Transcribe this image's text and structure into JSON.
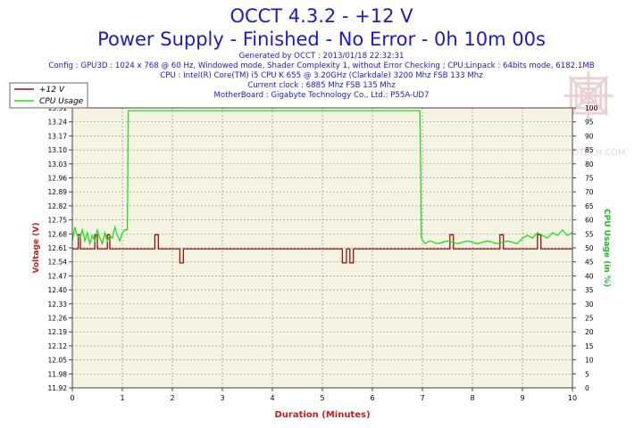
{
  "header": {
    "title": "OCCT 4.3.2 - +12 V",
    "subtitle": "Power Supply - Finished - No Error - 0h 10m 00s",
    "info_lines": [
      "Generated by OCCT : 2013/01/18 22:32:31",
      "Config : GPU3D : 1024 x 768 @ 60 Hz, Windowed mode, Shader Complexity 1, without Error Checking ; CPU:Linpack : 64bits mode, 6182.1MB",
      "CPU : Intel(R) Core(TM) i5 CPU K 655 @ 3.20GHz (Clarkdale) 3200 Mhz FSB 133 Mhz",
      "Current clock : 6885 Mhz FSB 135 Mhz",
      "MotherBoard : Gigabyte Technology Co., Ltd.: P55A-UD7"
    ]
  },
  "watermark_text": "VMODTECH.COM",
  "colors": {
    "title": "#1a1ac8",
    "voltage": "#a01010",
    "cpu": "#22dd22",
    "axis_label": "#c02020",
    "right_axis_label": "#22b822",
    "plot_bg": "#f5f3e2",
    "grid": "#9a9a9a"
  },
  "chart_data": {
    "type": "line",
    "xlabel": "Duration (Minutes)",
    "ylabel_left": "Voltage (V)",
    "ylabel_right": "CPU Usage (in %)",
    "xlim": [
      0,
      10
    ],
    "ylim_left": [
      11.92,
      13.31
    ],
    "ylim_right": [
      0,
      101
    ],
    "x_ticks": [
      "0",
      "1",
      "2",
      "3",
      "4",
      "5",
      "6",
      "7",
      "8",
      "9",
      "10"
    ],
    "y_left_ticks": [
      "13.31",
      "13.24",
      "13.17",
      "13.10",
      "13.03",
      "12.96",
      "12.89",
      "12.82",
      "12.75",
      "12.68",
      "12.61",
      "12.54",
      "12.47",
      "12.40",
      "12.33",
      "12.26",
      "12.19",
      "12.12",
      "12.05",
      "11.98",
      "11.92"
    ],
    "y_right_ticks": [
      "100",
      "95",
      "90",
      "85",
      "80",
      "75",
      "70",
      "65",
      "60",
      "55",
      "50",
      "45",
      "40",
      "35",
      "30",
      "25",
      "20",
      "15",
      "10",
      "5",
      "0"
    ],
    "legend": {
      "position": "top-left",
      "entries": [
        "+12 V",
        "CPU Usage"
      ]
    },
    "grid": true,
    "series": [
      {
        "name": "+12 V",
        "axis": "left",
        "points": [
          [
            0,
            12.61
          ],
          [
            0.12,
            12.61
          ],
          [
            0.12,
            12.68
          ],
          [
            0.16,
            12.68
          ],
          [
            0.16,
            12.61
          ],
          [
            0.45,
            12.61
          ],
          [
            0.45,
            12.68
          ],
          [
            0.5,
            12.68
          ],
          [
            0.5,
            12.61
          ],
          [
            0.7,
            12.61
          ],
          [
            0.7,
            12.68
          ],
          [
            0.75,
            12.68
          ],
          [
            0.75,
            12.61
          ],
          [
            1.65,
            12.61
          ],
          [
            1.65,
            12.68
          ],
          [
            1.72,
            12.68
          ],
          [
            1.72,
            12.61
          ],
          [
            2.15,
            12.61
          ],
          [
            2.15,
            12.54
          ],
          [
            2.22,
            12.54
          ],
          [
            2.22,
            12.61
          ],
          [
            5.4,
            12.61
          ],
          [
            5.4,
            12.54
          ],
          [
            5.48,
            12.54
          ],
          [
            5.48,
            12.61
          ],
          [
            5.55,
            12.61
          ],
          [
            5.55,
            12.54
          ],
          [
            5.62,
            12.54
          ],
          [
            5.62,
            12.61
          ],
          [
            7.55,
            12.61
          ],
          [
            7.55,
            12.68
          ],
          [
            7.62,
            12.68
          ],
          [
            7.62,
            12.61
          ],
          [
            8.55,
            12.61
          ],
          [
            8.55,
            12.68
          ],
          [
            8.62,
            12.68
          ],
          [
            8.62,
            12.61
          ],
          [
            9.3,
            12.61
          ],
          [
            9.3,
            12.68
          ],
          [
            9.37,
            12.68
          ],
          [
            9.37,
            12.61
          ],
          [
            10,
            12.61
          ]
        ]
      },
      {
        "name": "CPU Usage",
        "axis": "right",
        "points": [
          [
            0,
            53
          ],
          [
            0.05,
            58
          ],
          [
            0.1,
            55
          ],
          [
            0.15,
            54
          ],
          [
            0.2,
            57
          ],
          [
            0.25,
            53
          ],
          [
            0.3,
            56
          ],
          [
            0.35,
            52
          ],
          [
            0.4,
            55
          ],
          [
            0.45,
            53
          ],
          [
            0.5,
            57
          ],
          [
            0.55,
            54
          ],
          [
            0.6,
            52
          ],
          [
            0.65,
            56
          ],
          [
            0.7,
            53
          ],
          [
            0.75,
            55
          ],
          [
            0.8,
            54
          ],
          [
            0.85,
            58
          ],
          [
            0.9,
            55
          ],
          [
            0.95,
            53
          ],
          [
            1.0,
            56
          ],
          [
            1.05,
            57
          ],
          [
            1.1,
            57
          ],
          [
            1.12,
            100
          ],
          [
            6.95,
            100
          ],
          [
            6.98,
            54
          ],
          [
            7.05,
            52
          ],
          [
            7.15,
            53
          ],
          [
            7.3,
            52
          ],
          [
            7.5,
            53
          ],
          [
            7.7,
            52
          ],
          [
            7.9,
            53
          ],
          [
            8.1,
            52
          ],
          [
            8.3,
            53
          ],
          [
            8.5,
            52
          ],
          [
            8.7,
            53
          ],
          [
            8.9,
            52
          ],
          [
            9.0,
            54
          ],
          [
            9.1,
            55
          ],
          [
            9.2,
            54
          ],
          [
            9.3,
            56
          ],
          [
            9.4,
            55
          ],
          [
            9.5,
            54
          ],
          [
            9.6,
            56
          ],
          [
            9.7,
            55
          ],
          [
            9.8,
            57
          ],
          [
            9.9,
            55
          ],
          [
            10,
            56
          ]
        ]
      }
    ]
  }
}
